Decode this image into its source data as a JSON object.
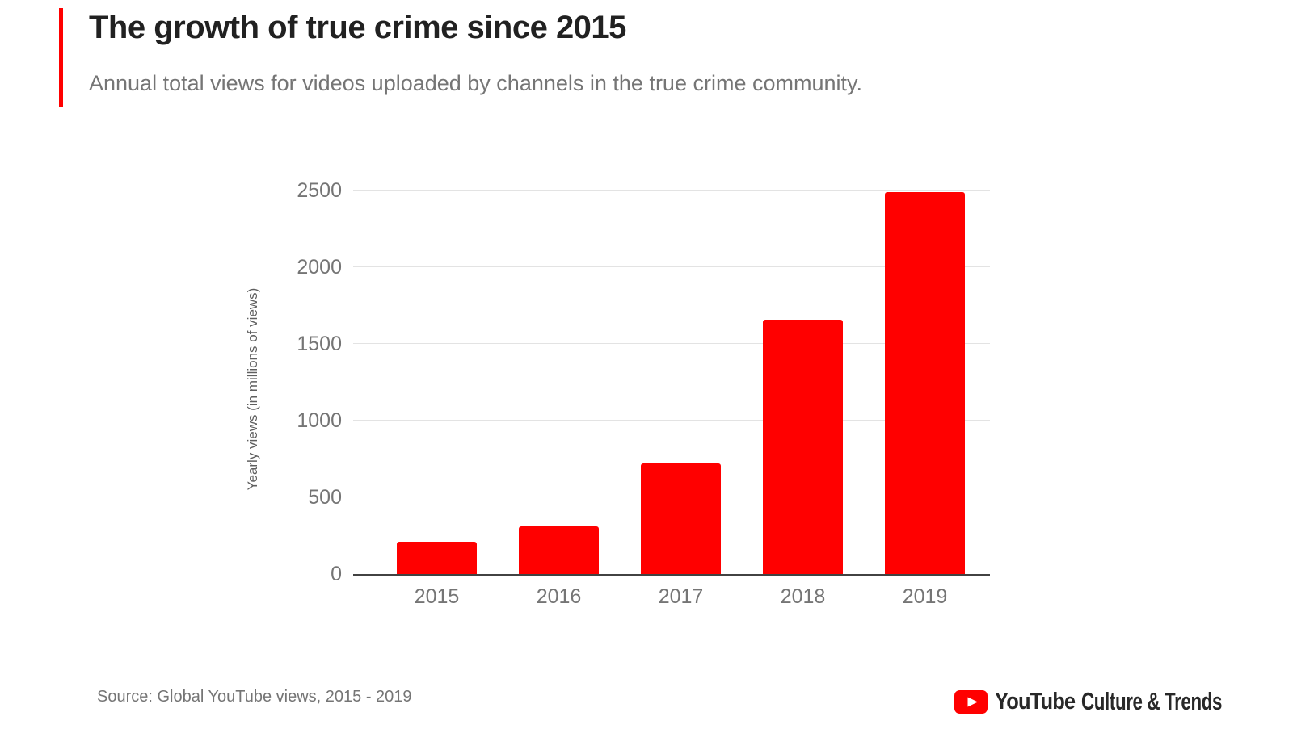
{
  "header": {
    "accent_color": "#ff0000",
    "title": "The growth of true crime since 2015",
    "subtitle": "Annual total views for videos uploaded by channels in the true crime community."
  },
  "chart_data": {
    "type": "bar",
    "categories": [
      "2015",
      "2016",
      "2017",
      "2018",
      "2019"
    ],
    "values": [
      210,
      310,
      720,
      1660,
      2490
    ],
    "title": "The growth of true crime since 2015",
    "xlabel": "",
    "ylabel": "Yearly views (in millions of views)",
    "ylim": [
      0,
      2500
    ],
    "yticks": [
      0,
      500,
      1000,
      1500,
      2000,
      2500
    ],
    "grid": true,
    "legend_position": "none",
    "bar_color": "#ff0000",
    "gridline_color": "#e3e3e3",
    "axis_line_color": "#424242",
    "tick_label_color": "#757575"
  },
  "footer": {
    "source": "Source: Global YouTube views, 2015 - 2019",
    "logo": {
      "play_icon_color": "#ff0000",
      "wordmark": "YouTube",
      "suffix": "Culture & Trends",
      "text_color": "#282828"
    }
  }
}
